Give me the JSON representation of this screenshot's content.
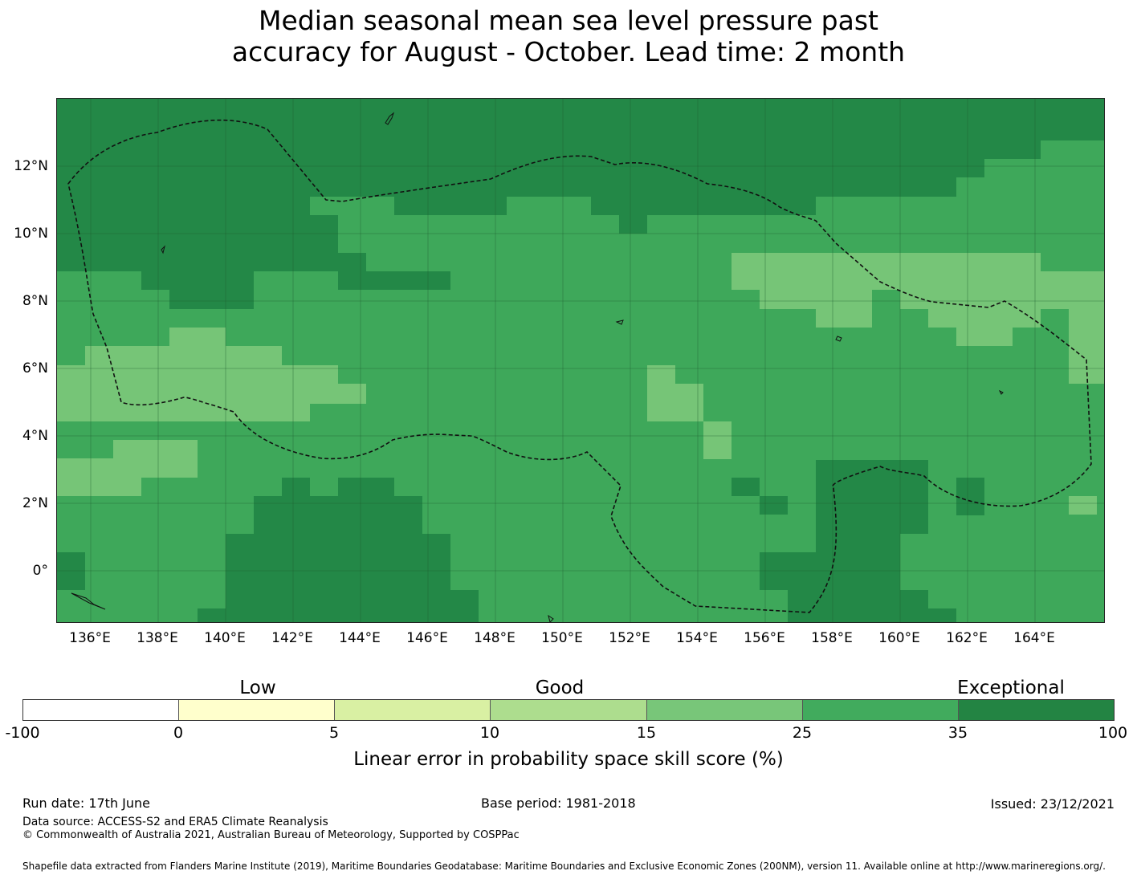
{
  "title_line1": "Median seasonal mean sea level pressure past",
  "title_line2": "accuracy for August - October. Lead time: 2 month",
  "map": {
    "lat_labels": [
      "12°N",
      "10°N",
      "8°N",
      "6°N",
      "4°N",
      "2°N",
      "0°"
    ],
    "lon_labels": [
      "136°E",
      "138°E",
      "140°E",
      "142°E",
      "144°E",
      "146°E",
      "148°E",
      "150°E",
      "152°E",
      "154°E",
      "156°E",
      "158°E",
      "160°E",
      "162°E",
      "164°E"
    ],
    "base_color": "#3ea85a",
    "dark_color": "#238847",
    "light_color": "#76c577"
  },
  "colorbar": {
    "category_labels": [
      "Low",
      "Good",
      "Exceptional"
    ],
    "tick_labels": [
      "-100",
      "0",
      "5",
      "10",
      "15",
      "25",
      "35",
      "100"
    ],
    "colors": [
      "#ffffff",
      "#ffffcc",
      "#d9f0a3",
      "#addd8e",
      "#78c679",
      "#41ab5d",
      "#238443"
    ],
    "title": "Linear error in probability space skill score (%)"
  },
  "footer": {
    "run_date": "Run date: 17th June",
    "base_period": "Base period: 1981-2018",
    "issued": "Issued: 23/12/2021",
    "data_source": "Data source: ACCESS-S2 and ERA5 Climate Reanalysis",
    "copyright": "© Commonwealth of Australia 2021, Australian Bureau of Meteorology, Supported by COSPPac",
    "shapefile": "Shapefile data extracted from Flanders Marine Institute (2019), Maritime Boundaries Geodatabase: Maritime Boundaries and Exclusive Economic Zones (200NM), version 11. Available online at http://www.marineregions.org/."
  }
}
